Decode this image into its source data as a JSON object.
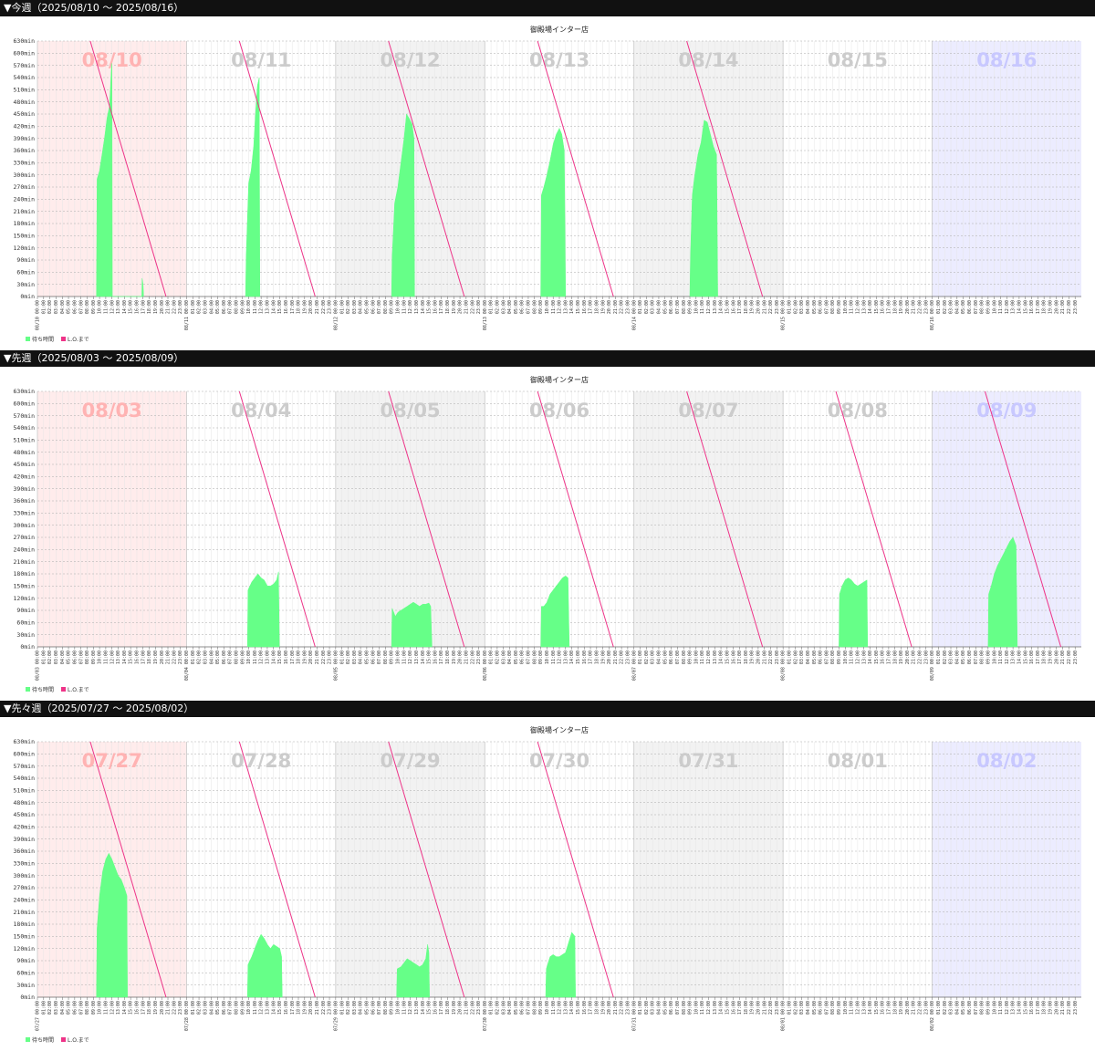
{
  "weeks": [
    {
      "header": "▼今週（2025/08/10 ～ 2025/08/16）"
    },
    {
      "header": "▼先週（2025/08/03 ～ 2025/08/09）"
    },
    {
      "header": "▼先々週（2025/07/27 ～ 2025/08/02）"
    }
  ],
  "legend": {
    "wait": "待ち時間",
    "lo": "L.O.まで"
  },
  "colors": {
    "wait": "#66ff88",
    "lo": "#ee3388",
    "sun_bg": "#ffecec",
    "sat_bg": "#ececff",
    "alt_bg": "#f2f2f2",
    "sun_label": "#ffb3b3",
    "sat_label": "#c8c8ff",
    "day_label": "#cccccc",
    "header_bg": "#111111"
  },
  "chart_data": [
    {
      "type": "area",
      "title": "御殿場インター店",
      "ylim": [
        0,
        630
      ],
      "yunit": "min",
      "days": [
        "08/10",
        "08/11",
        "08/12",
        "08/13",
        "08/14",
        "08/15",
        "08/16"
      ],
      "day_ticks": [
        "08/10",
        "08/11",
        "08/12",
        "08/13",
        "08/14",
        "08/15",
        "08/16"
      ],
      "series": [
        {
          "name": "待ち時間",
          "kind": "area",
          "by_day": [
            [
              [
                9.5,
                0
              ],
              [
                9.6,
                290
              ],
              [
                10,
                310
              ],
              [
                10.4,
                350
              ],
              [
                10.8,
                390
              ],
              [
                11.2,
                440
              ],
              [
                11.6,
                470
              ],
              [
                11.9,
                560
              ],
              [
                12.0,
                575
              ],
              [
                12.05,
                0
              ],
              [
                16.8,
                0
              ],
              [
                16.85,
                45
              ],
              [
                17.0,
                30
              ],
              [
                17.1,
                0
              ]
            ],
            [
              [
                9.5,
                0
              ],
              [
                9.6,
                100
              ],
              [
                10,
                280
              ],
              [
                10.4,
                310
              ],
              [
                10.8,
                370
              ],
              [
                11.1,
                450
              ],
              [
                11.4,
                520
              ],
              [
                11.7,
                540
              ],
              [
                11.8,
                0
              ]
            ],
            [
              [
                9.0,
                0
              ],
              [
                9.1,
                100
              ],
              [
                9.5,
                230
              ],
              [
                10,
                270
              ],
              [
                10.5,
                330
              ],
              [
                11,
                390
              ],
              [
                11.4,
                450
              ],
              [
                11.8,
                440
              ],
              [
                12.3,
                425
              ],
              [
                12.6,
                390
              ],
              [
                12.7,
                0
              ]
            ],
            [
              [
                9.0,
                0
              ],
              [
                9.1,
                250
              ],
              [
                9.5,
                270
              ],
              [
                10,
                300
              ],
              [
                10.5,
                335
              ],
              [
                11,
                375
              ],
              [
                11.5,
                400
              ],
              [
                12,
                415
              ],
              [
                12.4,
                400
              ],
              [
                12.8,
                360
              ],
              [
                13.0,
                0
              ]
            ],
            [
              [
                9.0,
                0
              ],
              [
                9.1,
                100
              ],
              [
                9.4,
                250
              ],
              [
                9.8,
                300
              ],
              [
                10.3,
                350
              ],
              [
                10.8,
                380
              ],
              [
                11.3,
                435
              ],
              [
                11.8,
                430
              ],
              [
                12.3,
                400
              ],
              [
                12.8,
                370
              ],
              [
                13.3,
                350
              ],
              [
                13.5,
                0
              ]
            ],
            [],
            []
          ]
        },
        {
          "name": "L.O.まで",
          "kind": "line",
          "start": [
            8.5,
            630
          ],
          "end": [
            20.7,
            0
          ],
          "days_with_line": [
            0,
            1,
            2,
            3,
            4
          ]
        }
      ]
    },
    {
      "type": "area",
      "title": "御殿場インター店",
      "ylim": [
        0,
        630
      ],
      "yunit": "min",
      "days": [
        "08/03",
        "08/04",
        "08/05",
        "08/06",
        "08/07",
        "08/08",
        "08/09"
      ],
      "day_ticks": [
        "08/03",
        "08/04",
        "08/05",
        "08/06",
        "08/07",
        "08/08",
        "08/09"
      ],
      "series": [
        {
          "name": "待ち時間",
          "kind": "area",
          "by_day": [
            [],
            [
              [
                9.8,
                0
              ],
              [
                9.9,
                140
              ],
              [
                10.5,
                160
              ],
              [
                11,
                170
              ],
              [
                11.5,
                180
              ],
              [
                12,
                170
              ],
              [
                12.5,
                165
              ],
              [
                13,
                150
              ],
              [
                13.5,
                150
              ],
              [
                14,
                155
              ],
              [
                14.5,
                165
              ],
              [
                14.8,
                185
              ],
              [
                14.95,
                0
              ]
            ],
            [
              [
                9.0,
                0
              ],
              [
                9.1,
                95
              ],
              [
                9.6,
                75
              ],
              [
                10,
                85
              ],
              [
                10.5,
                90
              ],
              [
                11,
                95
              ],
              [
                11.5,
                100
              ],
              [
                12,
                105
              ],
              [
                12.5,
                110
              ],
              [
                13,
                105
              ],
              [
                13.5,
                100
              ],
              [
                14,
                105
              ],
              [
                14.5,
                105
              ],
              [
                15,
                108
              ],
              [
                15.3,
                100
              ],
              [
                15.5,
                0
              ]
            ],
            [
              [
                9.0,
                0
              ],
              [
                9.1,
                100
              ],
              [
                9.5,
                100
              ],
              [
                10,
                110
              ],
              [
                10.5,
                130
              ],
              [
                11,
                140
              ],
              [
                11.5,
                150
              ],
              [
                12,
                160
              ],
              [
                12.5,
                170
              ],
              [
                13,
                175
              ],
              [
                13.4,
                170
              ],
              [
                13.6,
                0
              ]
            ],
            [],
            [
              [
                9.0,
                0
              ],
              [
                9.1,
                130
              ],
              [
                9.5,
                150
              ],
              [
                10,
                165
              ],
              [
                10.5,
                170
              ],
              [
                11,
                165
              ],
              [
                11.5,
                155
              ],
              [
                12,
                150
              ],
              [
                12.5,
                155
              ],
              [
                13,
                160
              ],
              [
                13.5,
                165
              ],
              [
                13.6,
                0
              ]
            ],
            [
              [
                9.0,
                0
              ],
              [
                9.1,
                130
              ],
              [
                9.5,
                150
              ],
              [
                10,
                180
              ],
              [
                10.5,
                200
              ],
              [
                11,
                215
              ],
              [
                11.5,
                230
              ],
              [
                12,
                245
              ],
              [
                12.5,
                260
              ],
              [
                13,
                270
              ],
              [
                13.5,
                250
              ],
              [
                13.7,
                0
              ]
            ]
          ]
        },
        {
          "name": "L.O.まで",
          "kind": "line",
          "start": [
            8.5,
            630
          ],
          "end": [
            20.7,
            0
          ],
          "days_with_line": [
            1,
            2,
            3,
            4,
            5,
            6
          ]
        }
      ]
    },
    {
      "type": "area",
      "title": "御殿場インター店",
      "ylim": [
        0,
        630
      ],
      "yunit": "min",
      "days": [
        "07/27",
        "07/28",
        "07/29",
        "07/30",
        "07/31",
        "08/01",
        "08/02"
      ],
      "day_ticks": [
        "07/27",
        "07/28",
        "07/29",
        "07/30",
        "07/31",
        "08/01",
        "08/02"
      ],
      "series": [
        {
          "name": "待ち時間",
          "kind": "area",
          "by_day": [
            [
              [
                9.5,
                0
              ],
              [
                9.6,
                170
              ],
              [
                10,
                250
              ],
              [
                10.5,
                310
              ],
              [
                11,
                340
              ],
              [
                11.5,
                355
              ],
              [
                12,
                340
              ],
              [
                12.5,
                320
              ],
              [
                13,
                300
              ],
              [
                13.5,
                290
              ],
              [
                14,
                270
              ],
              [
                14.4,
                250
              ],
              [
                14.5,
                0
              ]
            ],
            [
              [
                9.8,
                0
              ],
              [
                9.9,
                80
              ],
              [
                10.5,
                100
              ],
              [
                11,
                120
              ],
              [
                11.5,
                140
              ],
              [
                12,
                155
              ],
              [
                12.5,
                145
              ],
              [
                13,
                130
              ],
              [
                13.5,
                120
              ],
              [
                14,
                130
              ],
              [
                14.5,
                125
              ],
              [
                15,
                120
              ],
              [
                15.3,
                100
              ],
              [
                15.4,
                0
              ]
            ],
            [
              [
                9.8,
                0
              ],
              [
                9.9,
                70
              ],
              [
                10.5,
                75
              ],
              [
                11,
                85
              ],
              [
                11.5,
                95
              ],
              [
                12,
                90
              ],
              [
                12.5,
                85
              ],
              [
                13,
                80
              ],
              [
                13.5,
                75
              ],
              [
                14,
                80
              ],
              [
                14.5,
                95
              ],
              [
                14.8,
                130
              ],
              [
                15.0,
                110
              ],
              [
                15.1,
                0
              ]
            ],
            [
              [
                9.8,
                0
              ],
              [
                9.9,
                70
              ],
              [
                10.5,
                100
              ],
              [
                11,
                105
              ],
              [
                11.5,
                100
              ],
              [
                12,
                100
              ],
              [
                12.5,
                105
              ],
              [
                13,
                110
              ],
              [
                13.5,
                135
              ],
              [
                14,
                160
              ],
              [
                14.5,
                150
              ],
              [
                14.6,
                0
              ]
            ],
            [],
            [],
            []
          ]
        },
        {
          "name": "L.O.まで",
          "kind": "line",
          "start": [
            8.5,
            630
          ],
          "end": [
            20.7,
            0
          ],
          "days_with_line": [
            0,
            1,
            2,
            3
          ]
        }
      ]
    }
  ]
}
